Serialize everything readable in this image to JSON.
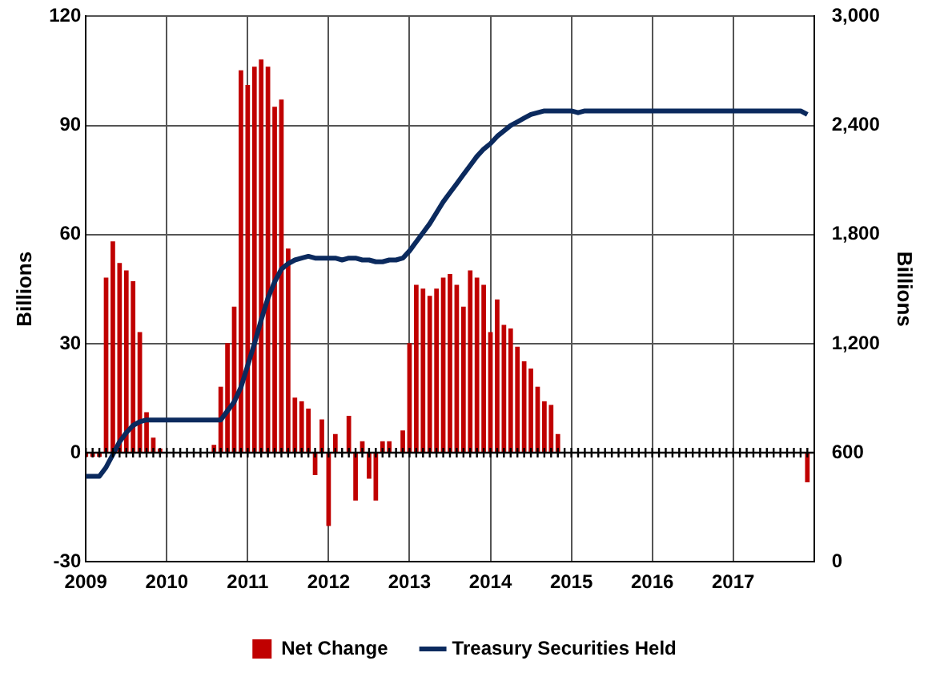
{
  "chart_data": {
    "type": "bar",
    "x": [
      "2009-01",
      "2009-02",
      "2009-03",
      "2009-04",
      "2009-05",
      "2009-06",
      "2009-07",
      "2009-08",
      "2009-09",
      "2009-10",
      "2009-11",
      "2009-12",
      "2010-01",
      "2010-02",
      "2010-03",
      "2010-04",
      "2010-05",
      "2010-06",
      "2010-07",
      "2010-08",
      "2010-09",
      "2010-10",
      "2010-11",
      "2010-12",
      "2011-01",
      "2011-02",
      "2011-03",
      "2011-04",
      "2011-05",
      "2011-06",
      "2011-07",
      "2011-08",
      "2011-09",
      "2011-10",
      "2011-11",
      "2011-12",
      "2012-01",
      "2012-02",
      "2012-03",
      "2012-04",
      "2012-05",
      "2012-06",
      "2012-07",
      "2012-08",
      "2012-09",
      "2012-10",
      "2012-11",
      "2012-12",
      "2013-01",
      "2013-02",
      "2013-03",
      "2013-04",
      "2013-05",
      "2013-06",
      "2013-07",
      "2013-08",
      "2013-09",
      "2013-10",
      "2013-11",
      "2013-12",
      "2014-01",
      "2014-02",
      "2014-03",
      "2014-04",
      "2014-05",
      "2014-06",
      "2014-07",
      "2014-08",
      "2014-09",
      "2014-10",
      "2014-11",
      "2014-12",
      "2015-01",
      "2015-02",
      "2015-03",
      "2015-04",
      "2015-05",
      "2015-06",
      "2015-07",
      "2015-08",
      "2015-09",
      "2015-10",
      "2015-11",
      "2015-12",
      "2016-01",
      "2016-02",
      "2016-03",
      "2016-04",
      "2016-05",
      "2016-06",
      "2016-07",
      "2016-08",
      "2016-09",
      "2016-10",
      "2016-11",
      "2016-12",
      "2017-01",
      "2017-02",
      "2017-03",
      "2017-04",
      "2017-05",
      "2017-06",
      "2017-07",
      "2017-08",
      "2017-09",
      "2017-10",
      "2017-11",
      "2017-12"
    ],
    "series": [
      {
        "name": "Net Change",
        "color": "#c00000",
        "values": [
          -1,
          -1,
          -1,
          48,
          58,
          52,
          50,
          47,
          33,
          11,
          4,
          1,
          0,
          0,
          0,
          0,
          0,
          0,
          0,
          2,
          18,
          30,
          40,
          105,
          101,
          106,
          108,
          106,
          95,
          97,
          56,
          15,
          14,
          12,
          -6,
          9,
          -20,
          5,
          0,
          10,
          -13,
          3,
          -7,
          -13,
          3,
          3,
          0,
          6,
          30,
          46,
          45,
          43,
          45,
          48,
          49,
          46,
          40,
          50,
          48,
          46,
          33,
          42,
          35,
          34,
          29,
          25,
          23,
          18,
          14,
          13,
          5,
          0,
          0,
          0,
          0,
          0,
          0,
          0,
          0,
          0,
          0,
          0,
          0,
          0,
          0,
          0,
          0,
          0,
          0,
          0,
          0,
          0,
          0,
          0,
          0,
          0,
          0,
          0,
          0,
          0,
          0,
          0,
          0,
          0,
          0,
          0,
          0,
          -8
        ]
      },
      {
        "name": "Treasury Securities Held",
        "type": "line",
        "axis": "y2",
        "color": "#0b2a5e",
        "values": [
          470,
          470,
          470,
          520,
          590,
          660,
          710,
          750,
          770,
          780,
          780,
          780,
          780,
          780,
          780,
          780,
          780,
          780,
          780,
          780,
          780,
          830,
          880,
          960,
          1080,
          1200,
          1330,
          1450,
          1540,
          1610,
          1640,
          1660,
          1670,
          1680,
          1670,
          1670,
          1670,
          1670,
          1660,
          1670,
          1670,
          1660,
          1660,
          1650,
          1650,
          1660,
          1660,
          1670,
          1710,
          1760,
          1810,
          1860,
          1920,
          1980,
          2030,
          2080,
          2130,
          2180,
          2230,
          2270,
          2300,
          2340,
          2370,
          2400,
          2420,
          2440,
          2460,
          2470,
          2480,
          2480,
          2480,
          2480,
          2480,
          2470,
          2480,
          2480,
          2480,
          2480,
          2480,
          2480,
          2480,
          2480,
          2480,
          2480,
          2480,
          2480,
          2480,
          2480,
          2480,
          2480,
          2480,
          2480,
          2480,
          2480,
          2480,
          2480,
          2480,
          2480,
          2480,
          2480,
          2480,
          2480,
          2480,
          2480,
          2480,
          2480,
          2480,
          2460
        ]
      }
    ],
    "xlim": [
      "2009",
      "2018"
    ],
    "xticks": [
      "2009",
      "2010",
      "2011",
      "2012",
      "2013",
      "2014",
      "2015",
      "2016",
      "2017",
      {
        "value": "2018",
        "label": null
      }
    ],
    "ylabel": "Billions",
    "y2label": "Billions",
    "ylim": [
      -30,
      120
    ],
    "yticks": [
      -30,
      0,
      30,
      60,
      90,
      120
    ],
    "y2lim": [
      0,
      3000
    ],
    "y2ticks": [
      0,
      {
        "value": 600,
        "label": "600"
      },
      {
        "value": 1200,
        "label": "1,200"
      },
      {
        "value": 1800,
        "label": "1,800"
      },
      {
        "value": 2400,
        "label": "2,400"
      },
      {
        "value": 3000,
        "label": "3,000"
      }
    ],
    "grid": true,
    "legend": "bottom",
    "marker": "none",
    "line_style": "solid"
  }
}
